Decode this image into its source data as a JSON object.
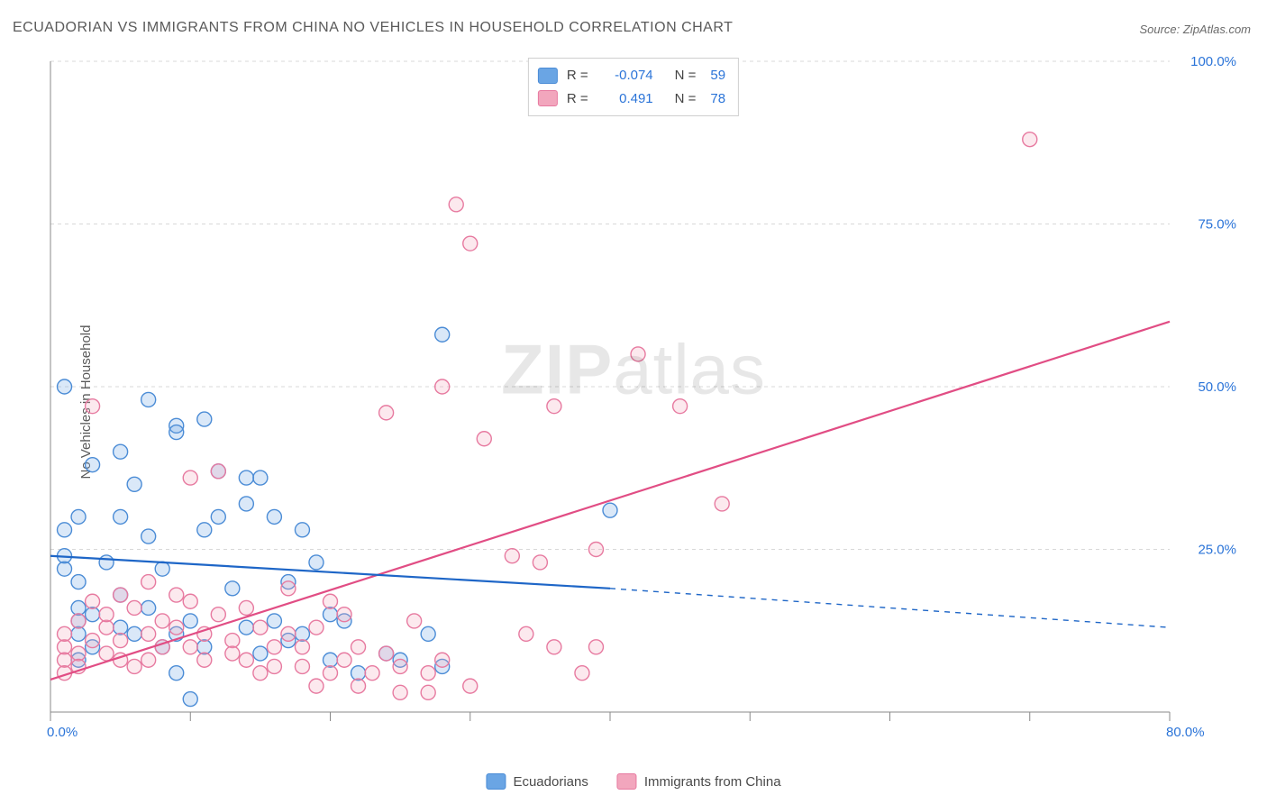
{
  "title": "ECUADORIAN VS IMMIGRANTS FROM CHINA NO VEHICLES IN HOUSEHOLD CORRELATION CHART",
  "source": "Source: ZipAtlas.com",
  "ylabel": "No Vehicles in Household",
  "watermark_a": "ZIP",
  "watermark_b": "atlas",
  "chart": {
    "type": "scatter",
    "xlim": [
      0,
      80
    ],
    "ylim": [
      0,
      100
    ],
    "x_tick_step": 10,
    "y_tick_step": 25,
    "x_label_min": "0.0%",
    "x_label_max": "80.0%",
    "y_labels": [
      "25.0%",
      "50.0%",
      "75.0%",
      "100.0%"
    ],
    "background_color": "#ffffff",
    "grid_color": "#d8d8d8",
    "axis_color": "#888888",
    "tick_color": "#888888",
    "label_color": "#2b74d8",
    "label_fontsize": 15,
    "title_fontsize": 16,
    "title_color": "#5a5a5a",
    "ylabel_fontsize": 15,
    "marker_radius": 8,
    "marker_fill_opacity": 0.25,
    "marker_stroke_width": 1.4,
    "series": [
      {
        "name": "Ecuadorians",
        "color": "#6aa5e4",
        "stroke": "#4b8cd6",
        "line_color": "#1e66c7",
        "line_width": 2.2,
        "R": "-0.074",
        "N": "59",
        "regression": {
          "x1": 0,
          "y1": 24,
          "x2": 40,
          "y2": 19,
          "x2_dash": 80,
          "y2_dash": 13
        },
        "points": [
          [
            1,
            50
          ],
          [
            1,
            28
          ],
          [
            1,
            22
          ],
          [
            1,
            24
          ],
          [
            2,
            12
          ],
          [
            2,
            14
          ],
          [
            2,
            30
          ],
          [
            2,
            8
          ],
          [
            2,
            20
          ],
          [
            2,
            16
          ],
          [
            3,
            38
          ],
          [
            3,
            15
          ],
          [
            3,
            10
          ],
          [
            4,
            23
          ],
          [
            5,
            40
          ],
          [
            5,
            13
          ],
          [
            5,
            18
          ],
          [
            5,
            30
          ],
          [
            6,
            35
          ],
          [
            6,
            12
          ],
          [
            7,
            48
          ],
          [
            7,
            27
          ],
          [
            7,
            16
          ],
          [
            8,
            22
          ],
          [
            8,
            10
          ],
          [
            9,
            44
          ],
          [
            9,
            43
          ],
          [
            9,
            12
          ],
          [
            9,
            6
          ],
          [
            10,
            14
          ],
          [
            10,
            2
          ],
          [
            11,
            45
          ],
          [
            11,
            28
          ],
          [
            11,
            10
          ],
          [
            12,
            37
          ],
          [
            12,
            30
          ],
          [
            13,
            19
          ],
          [
            14,
            36
          ],
          [
            14,
            32
          ],
          [
            14,
            13
          ],
          [
            15,
            36
          ],
          [
            15,
            9
          ],
          [
            16,
            30
          ],
          [
            16,
            14
          ],
          [
            17,
            20
          ],
          [
            17,
            11
          ],
          [
            18,
            28
          ],
          [
            18,
            12
          ],
          [
            19,
            23
          ],
          [
            20,
            8
          ],
          [
            20,
            15
          ],
          [
            21,
            14
          ],
          [
            22,
            6
          ],
          [
            24,
            9
          ],
          [
            25,
            8
          ],
          [
            27,
            12
          ],
          [
            28,
            58
          ],
          [
            28,
            7
          ],
          [
            40,
            31
          ]
        ]
      },
      {
        "name": "Immigrants from China",
        "color": "#f2a6bd",
        "stroke": "#e77aa0",
        "line_color": "#e14d84",
        "line_width": 2.2,
        "R": "0.491",
        "N": "78",
        "regression": {
          "x1": 0,
          "y1": 5,
          "x2": 80,
          "y2": 60
        },
        "points": [
          [
            1,
            10
          ],
          [
            1,
            8
          ],
          [
            1,
            6
          ],
          [
            1,
            12
          ],
          [
            2,
            14
          ],
          [
            2,
            9
          ],
          [
            2,
            7
          ],
          [
            3,
            47
          ],
          [
            3,
            17
          ],
          [
            3,
            11
          ],
          [
            4,
            13
          ],
          [
            4,
            9
          ],
          [
            4,
            15
          ],
          [
            5,
            18
          ],
          [
            5,
            11
          ],
          [
            5,
            8
          ],
          [
            6,
            16
          ],
          [
            6,
            7
          ],
          [
            7,
            20
          ],
          [
            7,
            12
          ],
          [
            7,
            8
          ],
          [
            8,
            14
          ],
          [
            8,
            10
          ],
          [
            9,
            18
          ],
          [
            9,
            13
          ],
          [
            10,
            36
          ],
          [
            10,
            17
          ],
          [
            10,
            10
          ],
          [
            11,
            12
          ],
          [
            11,
            8
          ],
          [
            12,
            37
          ],
          [
            12,
            15
          ],
          [
            13,
            11
          ],
          [
            13,
            9
          ],
          [
            14,
            16
          ],
          [
            14,
            8
          ],
          [
            15,
            13
          ],
          [
            15,
            6
          ],
          [
            16,
            10
          ],
          [
            16,
            7
          ],
          [
            17,
            12
          ],
          [
            17,
            19
          ],
          [
            18,
            10
          ],
          [
            18,
            7
          ],
          [
            19,
            13
          ],
          [
            19,
            4
          ],
          [
            20,
            17
          ],
          [
            20,
            6
          ],
          [
            21,
            15
          ],
          [
            21,
            8
          ],
          [
            22,
            10
          ],
          [
            22,
            4
          ],
          [
            23,
            6
          ],
          [
            24,
            46
          ],
          [
            24,
            9
          ],
          [
            25,
            7
          ],
          [
            25,
            3
          ],
          [
            26,
            14
          ],
          [
            27,
            6
          ],
          [
            27,
            3
          ],
          [
            28,
            50
          ],
          [
            28,
            8
          ],
          [
            29,
            78
          ],
          [
            30,
            72
          ],
          [
            30,
            4
          ],
          [
            31,
            42
          ],
          [
            33,
            24
          ],
          [
            34,
            12
          ],
          [
            35,
            23
          ],
          [
            36,
            47
          ],
          [
            36,
            10
          ],
          [
            38,
            6
          ],
          [
            39,
            25
          ],
          [
            39,
            10
          ],
          [
            42,
            55
          ],
          [
            45,
            47
          ],
          [
            48,
            32
          ],
          [
            70,
            88
          ]
        ]
      }
    ]
  },
  "legend_top": {
    "r_label": "R =",
    "n_label": "N ="
  },
  "legend_bottom": [
    {
      "label": "Ecuadorians"
    },
    {
      "label": "Immigrants from China"
    }
  ]
}
